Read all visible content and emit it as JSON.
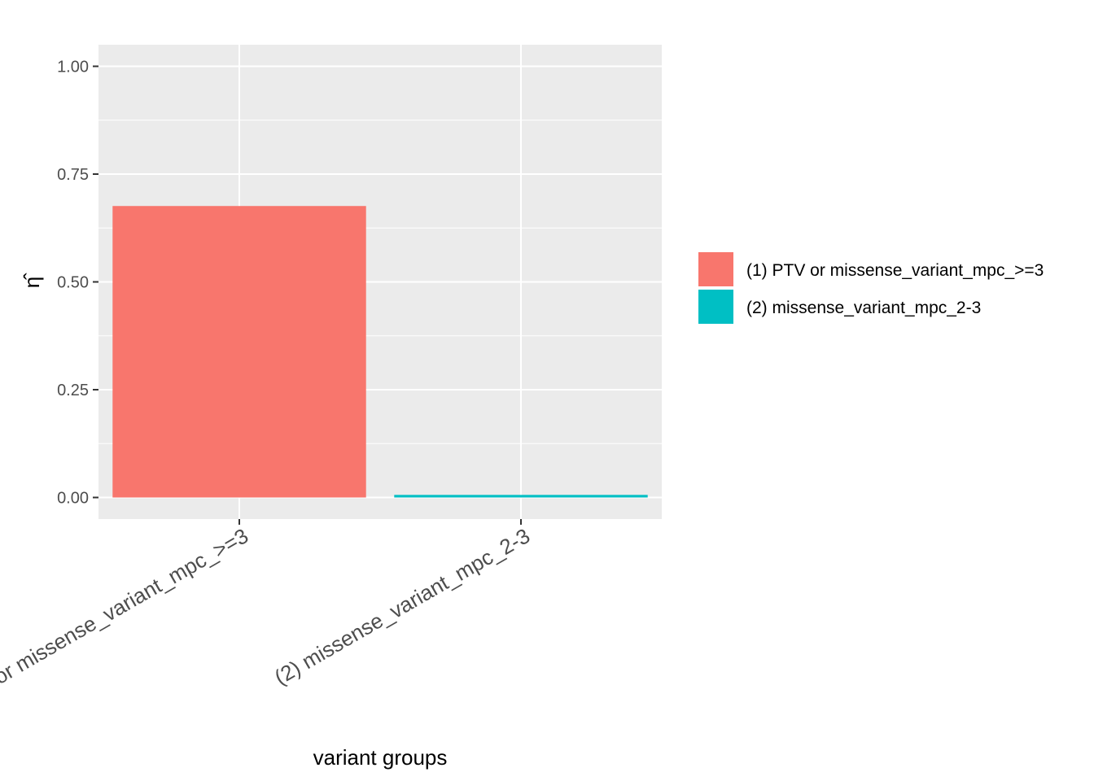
{
  "chart_data": {
    "type": "bar",
    "categories": [
      "(1) PTV or missense_variant_mpc_>=3",
      "(2) missense_variant_mpc_2-3"
    ],
    "values": [
      0.676,
      0.006
    ],
    "colors": [
      "#f8766d",
      "#00bfc4"
    ],
    "xlabel": "variant groups",
    "ylabel": "η̂",
    "ylim": [
      -0.05,
      1.05
    ],
    "yticks": [
      0.0,
      0.25,
      0.5,
      0.75,
      1.0
    ],
    "ytick_labels": [
      "0.00",
      "0.25",
      "0.50",
      "0.75",
      "1.00"
    ],
    "grid": true,
    "panel_background": "#ebebeb",
    "legend": {
      "placement": "right",
      "entries": [
        "(1) PTV or missense_variant_mpc_>=3",
        "(2) missense_variant_mpc_2-3"
      ]
    }
  }
}
